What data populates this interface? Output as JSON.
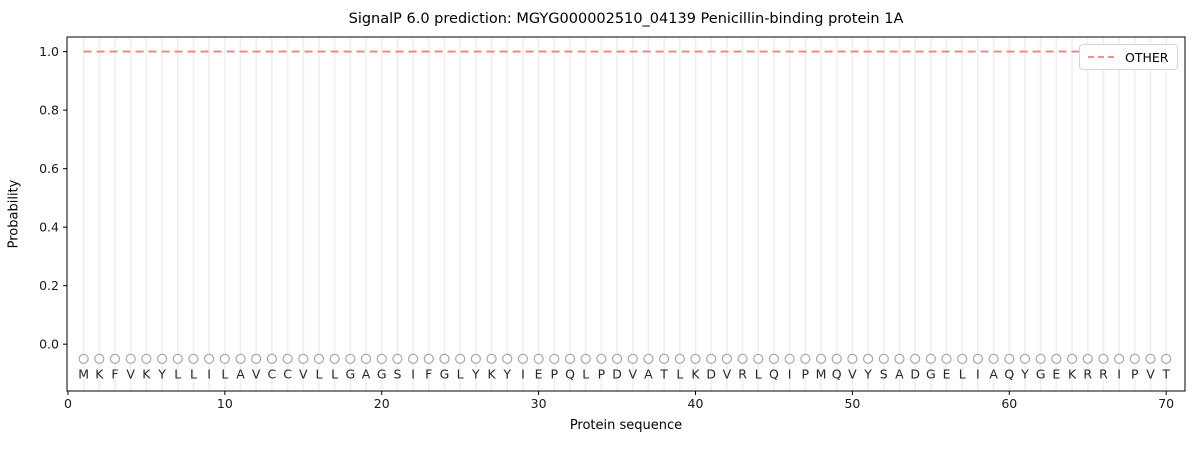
{
  "chart_data": {
    "type": "line",
    "title": "SignalP 6.0 prediction: MGYG000002510_04139 Penicillin-binding protein 1A",
    "xlabel": "Protein sequence",
    "ylabel": "Probability",
    "sequence": "MKFVKYLLILAVCCVLLGAGSIFGLYKYIEPQLPDVATLKDVRLQIPMQVYSADGELIAQYGEKRRIPVT",
    "x": [
      1,
      2,
      3,
      4,
      5,
      6,
      7,
      8,
      9,
      10,
      11,
      12,
      13,
      14,
      15,
      16,
      17,
      18,
      19,
      20,
      21,
      22,
      23,
      24,
      25,
      26,
      27,
      28,
      29,
      30,
      31,
      32,
      33,
      34,
      35,
      36,
      37,
      38,
      39,
      40,
      41,
      42,
      43,
      44,
      45,
      46,
      47,
      48,
      49,
      50,
      51,
      52,
      53,
      54,
      55,
      56,
      57,
      58,
      59,
      60,
      61,
      62,
      63,
      64,
      65,
      66,
      67,
      68,
      69,
      70
    ],
    "series": [
      {
        "name": "OTHER",
        "linestyle": "dashed",
        "color": "#f4807f",
        "values": [
          1.0,
          1.0,
          1.0,
          1.0,
          1.0,
          1.0,
          1.0,
          1.0,
          1.0,
          1.0,
          1.0,
          1.0,
          1.0,
          1.0,
          1.0,
          1.0,
          1.0,
          1.0,
          1.0,
          1.0,
          1.0,
          1.0,
          1.0,
          1.0,
          1.0,
          1.0,
          1.0,
          1.0,
          1.0,
          1.0,
          1.0,
          1.0,
          1.0,
          1.0,
          1.0,
          1.0,
          1.0,
          1.0,
          1.0,
          1.0,
          1.0,
          1.0,
          1.0,
          1.0,
          1.0,
          1.0,
          1.0,
          1.0,
          1.0,
          1.0,
          1.0,
          1.0,
          1.0,
          1.0,
          1.0,
          1.0,
          1.0,
          1.0,
          1.0,
          1.0,
          1.0,
          1.0,
          1.0,
          1.0,
          1.0,
          1.0,
          1.0,
          1.0,
          1.0,
          1.0
        ]
      }
    ],
    "marker_row_value": -0.05,
    "letter_row_value": -0.1,
    "xtick_labels": [
      "0",
      "10",
      "20",
      "30",
      "40",
      "50",
      "60",
      "70"
    ],
    "ytick_labels": [
      "0.0",
      "0.2",
      "0.4",
      "0.6",
      "0.8",
      "1.0"
    ],
    "xlim": [
      -0.06,
      71.2
    ],
    "ylim": [
      -0.16,
      1.05
    ],
    "grid": "vertical line at every residue position",
    "legend_position": "upper right",
    "grid_color": "#f0f0f0",
    "marker_color": "#a3a3a3",
    "letter_color": "#262626",
    "axis_color": "#000000",
    "tick_label_color": "#1a1a1a"
  }
}
